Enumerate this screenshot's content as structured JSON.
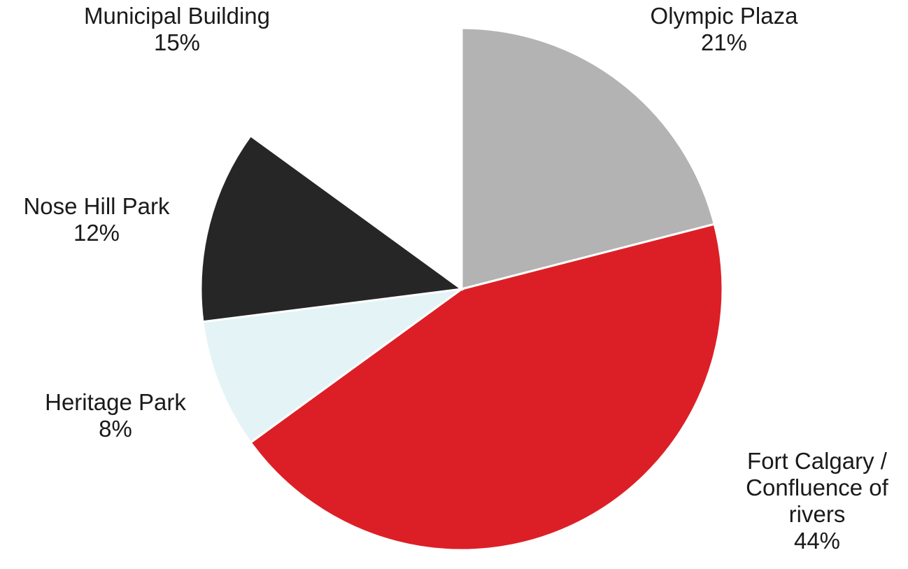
{
  "chart_data": {
    "type": "pie",
    "title": "",
    "start_position": "12 o'clock, clockwise",
    "slices": [
      {
        "label": "Olympic Plaza",
        "value": 21,
        "value_label": "21%",
        "color": "#b3b3b3"
      },
      {
        "label": "Fort Calgary / Confluence of rivers",
        "value": 44,
        "value_label": "44%",
        "color": "#dc1f26"
      },
      {
        "label": "Heritage Park",
        "value": 8,
        "value_label": "8%",
        "color": "#e4f3f6"
      },
      {
        "label": "Nose Hill Park",
        "value": 12,
        "value_label": "12%",
        "color": "#262626"
      },
      {
        "label": "Municipal Building",
        "value": 15,
        "value_label": "15%",
        "color": "#ffffff"
      }
    ]
  }
}
